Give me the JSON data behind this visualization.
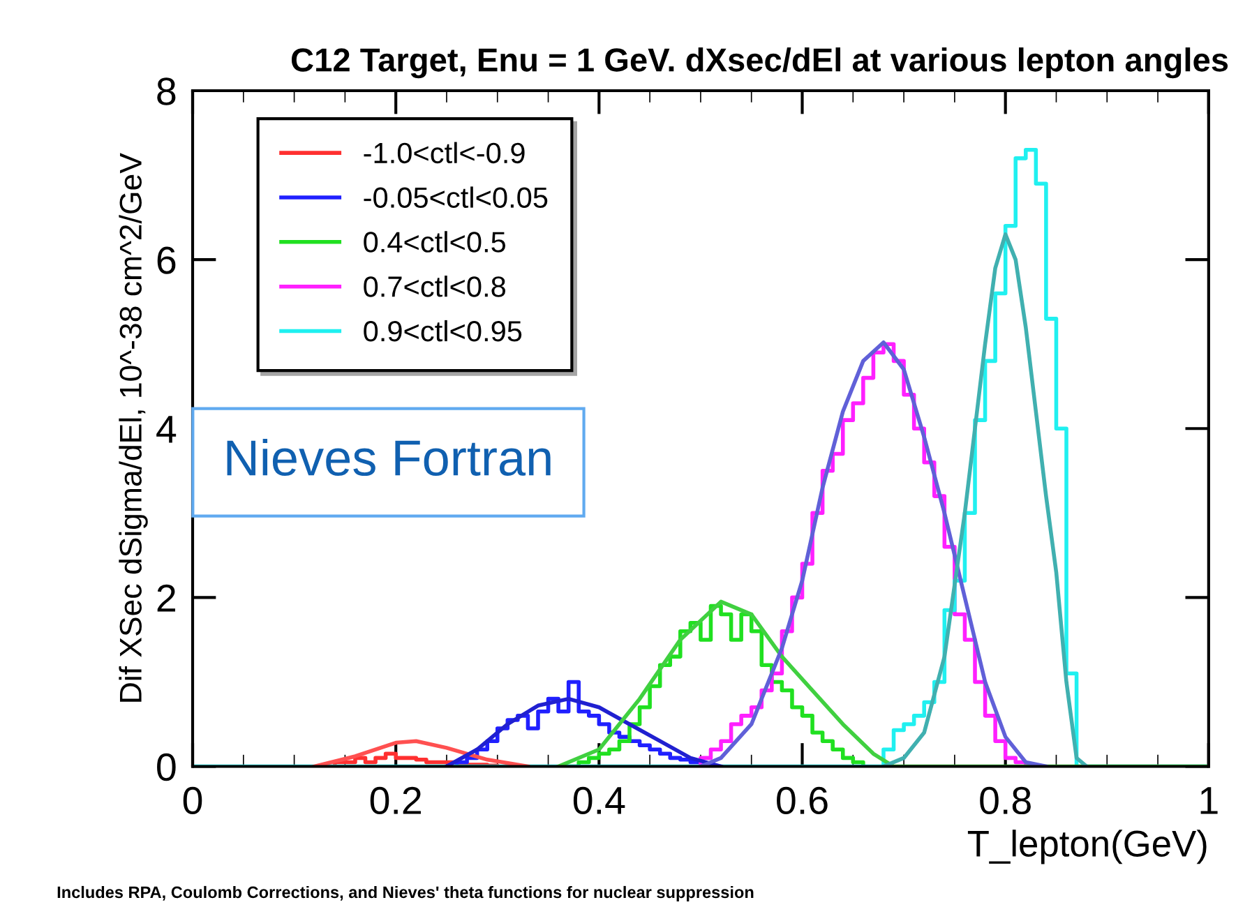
{
  "chart_data": {
    "type": "line",
    "title": "C12 Target, Enu = 1 GeV. dXsec/dEl at various lepton angles",
    "xlabel": "T_lepton(GeV)",
    "ylabel": "Dif XSec dSigma/dEl, 10^-38 cm^2/GeV",
    "xlim": [
      0,
      1
    ],
    "xticks": [
      0,
      0.2,
      0.4,
      0.6,
      0.8,
      1
    ],
    "ylim": [
      0,
      8
    ],
    "yticks": [
      0,
      2,
      4,
      6,
      8
    ],
    "legend": "top left",
    "annotations": [
      "Nieves Fortran",
      "Includes RPA, Coulomb Corrections, and Nieves' theta functions for nuclear suppression"
    ],
    "series": [
      {
        "type": "step",
        "name": "-1.0<ctl<-0.9",
        "color": "#ff3030",
        "x": [
          0.13,
          0.14,
          0.15,
          0.16,
          0.17,
          0.18,
          0.19,
          0.2,
          0.21,
          0.22,
          0.23,
          0.24,
          0.25,
          0.26,
          0.27,
          0.28,
          0.29,
          0.3
        ],
        "values": [
          0,
          0.05,
          0.05,
          0.1,
          0.05,
          0.1,
          0.15,
          0.1,
          0.1,
          0.08,
          0.05,
          0.05,
          0.05,
          0.03,
          0.02,
          0.02,
          0.01,
          0
        ]
      },
      {
        "type": "step",
        "name": "-0.05<ctl<0.05",
        "color": "#2020ff",
        "x": [
          0.25,
          0.26,
          0.27,
          0.28,
          0.29,
          0.3,
          0.31,
          0.32,
          0.33,
          0.34,
          0.35,
          0.36,
          0.37,
          0.38,
          0.39,
          0.4,
          0.41,
          0.42,
          0.43,
          0.44,
          0.45,
          0.46,
          0.47,
          0.48,
          0.49,
          0.5
        ],
        "values": [
          0,
          0.05,
          0.1,
          0.2,
          0.3,
          0.45,
          0.55,
          0.6,
          0.45,
          0.65,
          0.8,
          0.65,
          1.0,
          0.65,
          0.6,
          0.5,
          0.4,
          0.35,
          0.3,
          0.25,
          0.2,
          0.15,
          0.1,
          0.08,
          0.05,
          0
        ]
      },
      {
        "type": "step",
        "name": "0.4<ctl<0.5",
        "color": "#20e020",
        "x": [
          0.37,
          0.38,
          0.39,
          0.4,
          0.41,
          0.42,
          0.43,
          0.44,
          0.45,
          0.46,
          0.47,
          0.48,
          0.49,
          0.5,
          0.51,
          0.52,
          0.53,
          0.54,
          0.55,
          0.56,
          0.57,
          0.58,
          0.59,
          0.6,
          0.61,
          0.62,
          0.63,
          0.64,
          0.65,
          0.66
        ],
        "values": [
          0,
          0.05,
          0.1,
          0.15,
          0.2,
          0.3,
          0.5,
          0.7,
          0.95,
          1.2,
          1.3,
          1.6,
          1.7,
          1.5,
          1.9,
          1.8,
          1.5,
          1.8,
          1.6,
          1.2,
          1.0,
          0.9,
          0.7,
          0.6,
          0.4,
          0.3,
          0.2,
          0.1,
          0.05,
          0
        ]
      },
      {
        "type": "step",
        "name": "0.7<ctl<0.8",
        "color": "#ff20ff",
        "x": [
          0.49,
          0.5,
          0.51,
          0.52,
          0.53,
          0.54,
          0.55,
          0.56,
          0.57,
          0.58,
          0.59,
          0.6,
          0.61,
          0.62,
          0.63,
          0.64,
          0.65,
          0.66,
          0.67,
          0.68,
          0.69,
          0.7,
          0.71,
          0.72,
          0.73,
          0.74,
          0.75,
          0.76,
          0.77,
          0.78,
          0.79,
          0.8,
          0.81,
          0.82,
          0.83
        ],
        "values": [
          0,
          0.1,
          0.2,
          0.3,
          0.5,
          0.6,
          0.7,
          0.9,
          1.1,
          1.6,
          2.0,
          2.4,
          3.0,
          3.5,
          3.7,
          4.1,
          4.3,
          4.6,
          4.9,
          5.0,
          4.8,
          4.4,
          4.0,
          3.6,
          3.2,
          2.6,
          1.8,
          1.5,
          1.0,
          0.6,
          0.3,
          0.1,
          0.05,
          0.02,
          0
        ]
      },
      {
        "type": "step",
        "name": "0.9<ctl<0.95",
        "color": "#20f0f0",
        "x": [
          0,
          0.68,
          0.69,
          0.7,
          0.71,
          0.72,
          0.73,
          0.74,
          0.75,
          0.76,
          0.77,
          0.78,
          0.79,
          0.8,
          0.81,
          0.82,
          0.83,
          0.84,
          0.85,
          0.86,
          0.87,
          1
        ],
        "values": [
          0,
          0.2,
          0.43,
          0.5,
          0.6,
          0.76,
          1.0,
          1.85,
          2.2,
          3.0,
          4.1,
          4.8,
          5.6,
          6.4,
          7.2,
          7.3,
          6.9,
          5.3,
          4.0,
          1.1,
          0,
          0
        ]
      },
      {
        "color": "#ff5050",
        "x": [
          0.12,
          0.16,
          0.2,
          0.22,
          0.25,
          0.29,
          0.33
        ],
        "values": [
          0,
          0.12,
          0.28,
          0.3,
          0.22,
          0.08,
          0
        ]
      },
      {
        "color": "#2020d0",
        "x": [
          0.25,
          0.28,
          0.31,
          0.34,
          0.37,
          0.4,
          0.43,
          0.46,
          0.49,
          0.52
        ],
        "values": [
          0,
          0.2,
          0.5,
          0.72,
          0.8,
          0.7,
          0.5,
          0.3,
          0.1,
          0
        ]
      },
      {
        "color": "#40d040",
        "x": [
          0.36,
          0.4,
          0.44,
          0.48,
          0.52,
          0.55,
          0.58,
          0.61,
          0.64,
          0.67,
          0.69,
          1
        ],
        "values": [
          0,
          0.2,
          0.8,
          1.5,
          1.95,
          1.8,
          1.3,
          0.9,
          0.5,
          0.15,
          0,
          0
        ]
      },
      {
        "color": "#6060d8",
        "x": [
          0.5,
          0.52,
          0.55,
          0.58,
          0.6,
          0.62,
          0.64,
          0.66,
          0.68,
          0.7,
          0.72,
          0.74,
          0.76,
          0.78,
          0.8,
          0.82,
          0.84
        ],
        "values": [
          0,
          0.1,
          0.5,
          1.4,
          2.2,
          3.3,
          4.2,
          4.8,
          5.02,
          4.7,
          3.9,
          3.0,
          2.0,
          1.0,
          0.35,
          0.05,
          0
        ]
      },
      {
        "color": "#40b0b0",
        "x": [
          0.68,
          0.7,
          0.72,
          0.74,
          0.76,
          0.77,
          0.78,
          0.79,
          0.8,
          0.81,
          0.82,
          0.83,
          0.84,
          0.85,
          0.86,
          0.87,
          0.88
        ],
        "values": [
          0,
          0.1,
          0.4,
          1.3,
          3.0,
          4.0,
          5.0,
          5.9,
          6.3,
          6.0,
          5.2,
          4.2,
          3.2,
          2.3,
          1.0,
          0.1,
          0
        ]
      }
    ]
  }
}
